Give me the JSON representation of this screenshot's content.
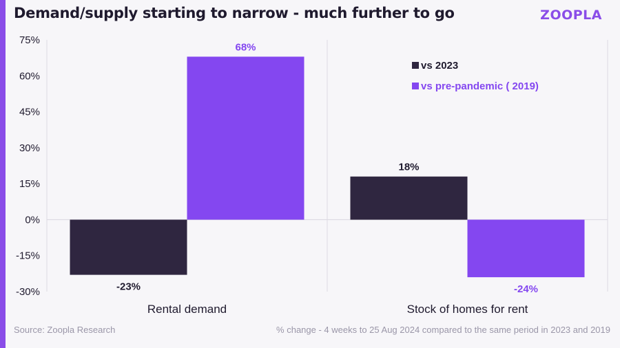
{
  "title": "Demand/supply starting to narrow - much further to go",
  "brand": "ZOOPLA",
  "footer": {
    "source": "Source: Zoopla Research",
    "note": "% change - 4 weeks to 25 Aug 2024 compared to the same period in 2023 and 2019"
  },
  "colors": {
    "series1": "#2f2640",
    "series2": "#8447f0",
    "text": "#1f1a2e",
    "grid": "#dcdae2",
    "accent": "#8a4de8"
  },
  "chart_data": {
    "type": "bar",
    "categories": [
      "Rental demand",
      "Stock of homes for rent"
    ],
    "series": [
      {
        "name": "vs 2023",
        "values": [
          -23,
          18
        ],
        "labels": [
          "-23%",
          "18%"
        ]
      },
      {
        "name": "vs pre-pandemic ( 2019)",
        "values": [
          68,
          -24
        ],
        "labels": [
          "68%",
          "-24%"
        ]
      }
    ],
    "ylim": [
      -30,
      75
    ],
    "yticks": [
      75,
      60,
      45,
      30,
      15,
      0,
      -15,
      -30
    ],
    "ytick_labels": [
      "75%",
      "60%",
      "45%",
      "30%",
      "15%",
      "0%",
      "-15%",
      "-30%"
    ],
    "legend_position": "top-right",
    "grid": "vertical category separators"
  }
}
